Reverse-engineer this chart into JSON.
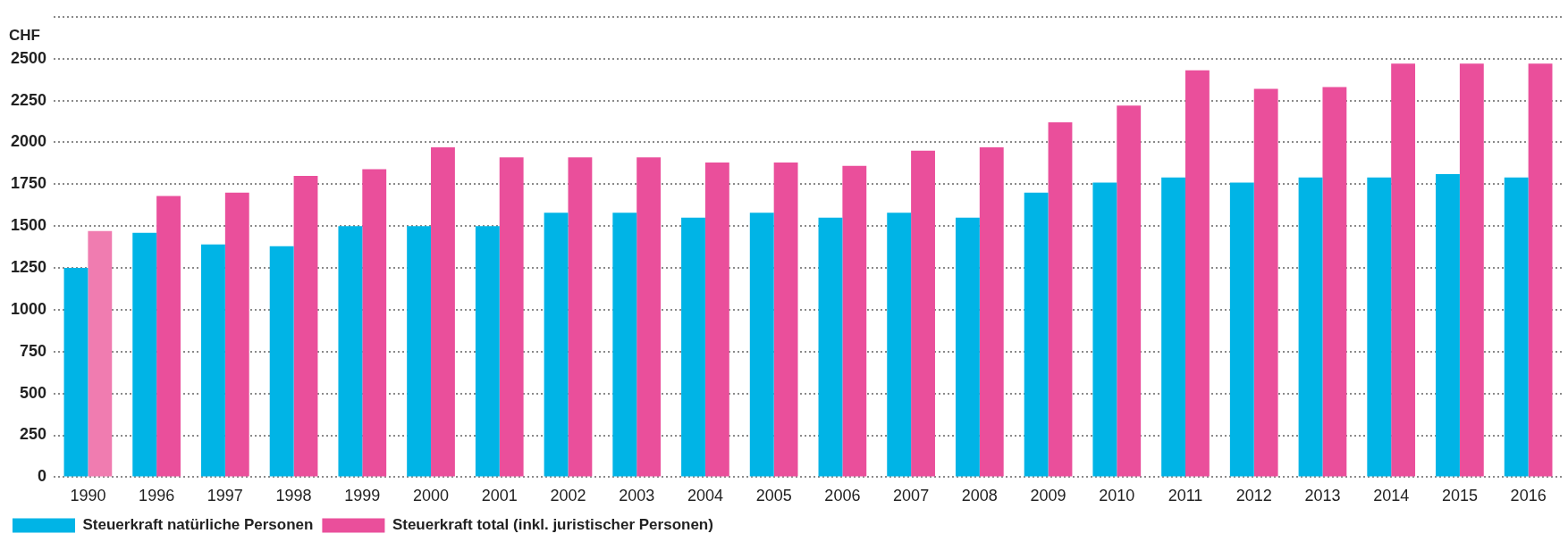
{
  "chart_data": {
    "type": "bar",
    "ylabel": "CHF",
    "categories": [
      "1990",
      "1996",
      "1997",
      "1998",
      "1999",
      "2000",
      "2001",
      "2002",
      "2003",
      "2004",
      "2005",
      "2006",
      "2007",
      "2008",
      "2009",
      "2010",
      "2011",
      "2012",
      "2013",
      "2014",
      "2015",
      "2016"
    ],
    "series": [
      {
        "name": "Steuerkraft natürliche Personen",
        "color": "#00b4e6",
        "values": [
          1250,
          1460,
          1390,
          1380,
          1500,
          1500,
          1500,
          1580,
          1580,
          1550,
          1580,
          1550,
          1580,
          1550,
          1700,
          1760,
          1790,
          1760,
          1790,
          1790,
          1810,
          1790
        ]
      },
      {
        "name": "Steuerkraft total (inkl. juristischer Personen)",
        "color": "#ea4f9b",
        "colors": [
          "#f07cb0",
          "#ea4f9b",
          "#ea4f9b",
          "#ea4f9b",
          "#ea4f9b",
          "#ea4f9b",
          "#ea4f9b",
          "#ea4f9b",
          "#ea4f9b",
          "#ea4f9b",
          "#ea4f9b",
          "#ea4f9b",
          "#ea4f9b",
          "#ea4f9b",
          "#ea4f9b",
          "#ea4f9b",
          "#ea4f9b",
          "#ea4f9b",
          "#ea4f9b",
          "#ea4f9b",
          "#ea4f9b",
          "#ea4f9b"
        ],
        "values": [
          1470,
          1680,
          1700,
          1800,
          1840,
          1970,
          1910,
          1910,
          1910,
          1880,
          1880,
          1860,
          1950,
          1970,
          2120,
          2220,
          2430,
          2320,
          2330,
          2470,
          2470,
          2470
        ]
      }
    ],
    "ylim": [
      0,
      2750
    ],
    "yticks": [
      0,
      250,
      500,
      750,
      1000,
      1250,
      1500,
      1750,
      2000,
      2250,
      2500,
      {
        "value": 2750,
        "label": null
      }
    ],
    "grid": "y",
    "legend": "bottom left"
  }
}
